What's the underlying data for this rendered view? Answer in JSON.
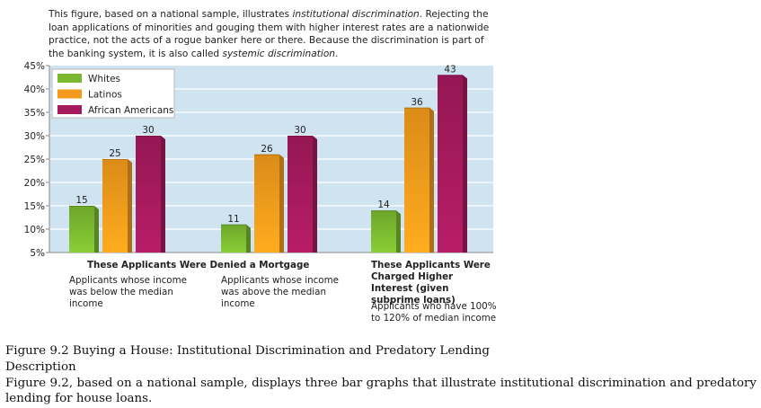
{
  "intro": {
    "part1": "This figure, based on a national sample, illustrates ",
    "term1": "institutional discrimination",
    "part2": ". Rejecting the loan applications of minorities and gouging them with higher interest rates are a nationwide practice, not the acts of a rogue banker here or there. Because the discrimination is part of the banking system, it is also called ",
    "term2": "systemic discrimination",
    "part3": "."
  },
  "chart_data": {
    "type": "bar",
    "y_ticks": [
      "45%",
      "40%",
      "35%",
      "30%",
      "25%",
      "20%",
      "15%",
      "10%",
      "5%"
    ],
    "ylim": [
      5,
      45
    ],
    "grid": true,
    "legend_position": "top-left",
    "series": [
      {
        "name": "Whites",
        "color": "#7ab830",
        "values": [
          15,
          11,
          14
        ]
      },
      {
        "name": "Latinos",
        "color": "#f39a1c",
        "values": [
          25,
          26,
          36
        ]
      },
      {
        "name": "African Americans",
        "color": "#a41a5c",
        "values": [
          30,
          30,
          43
        ]
      }
    ],
    "groups": [
      {
        "heading": "",
        "description": "Applicants whose income was below the median income"
      },
      {
        "heading": "",
        "description": "Applicants whose income was above the median income"
      },
      {
        "heading": "These Applicants Were Charged Higher Interest (given subprime loans)",
        "description": "Applicants who have 100% to 120% of median income"
      }
    ],
    "shared_heading": "These Applicants Were Denied a Mortgage"
  },
  "colors": {
    "plot_background": "#cfe3f1",
    "gridline": "#ffffff",
    "axis": "#8a8a8a"
  },
  "caption": {
    "title": "Figure 9.2 Buying a House: Institutional Discrimination and Predatory Lending",
    "label": "Description",
    "description": "Figure 9.2, based on a national sample, displays three bar graphs that illustrate institutional discrimination and predatory lending for house loans."
  }
}
